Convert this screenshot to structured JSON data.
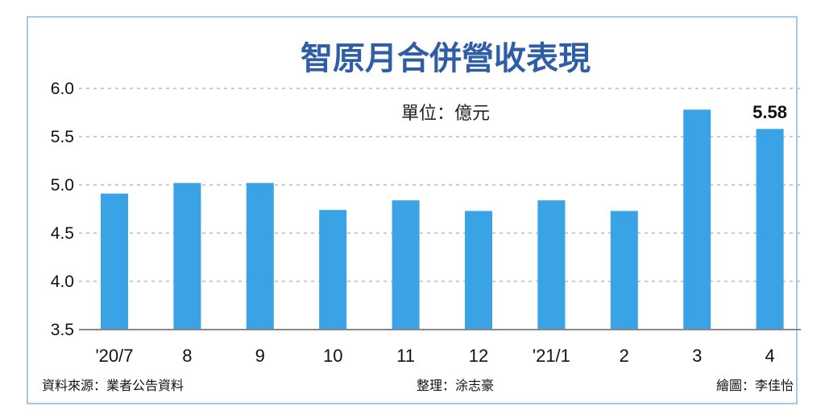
{
  "chart_data": {
    "type": "bar",
    "title": "智原月合併營收表現",
    "unit_label": "單位：億元",
    "categories": [
      "'20/7",
      "8",
      "9",
      "10",
      "11",
      "12",
      "'21/1",
      "2",
      "3",
      "4"
    ],
    "values": [
      4.91,
      5.02,
      5.02,
      4.74,
      4.84,
      4.73,
      4.84,
      4.73,
      5.78,
      5.58
    ],
    "ylim": [
      3.5,
      6.0
    ],
    "yticks": [
      "3.5",
      "4.0",
      "4.5",
      "5.0",
      "5.5",
      "6.0"
    ],
    "ytick_values": [
      3.5,
      4.0,
      4.5,
      5.0,
      5.5,
      6.0
    ],
    "data_labels": [
      {
        "index": 9,
        "text": "5.58"
      }
    ],
    "grid": true,
    "bar_color": "#3aa3e6"
  },
  "footer": {
    "source": "資料來源：業者公告資料",
    "editor": "整理：涂志豪",
    "illustrator": "繪圖：李佳怡"
  },
  "colors": {
    "title": "#2f5ea6",
    "frame_border": "#a9c6e6",
    "grid": "#bbbbbb"
  }
}
